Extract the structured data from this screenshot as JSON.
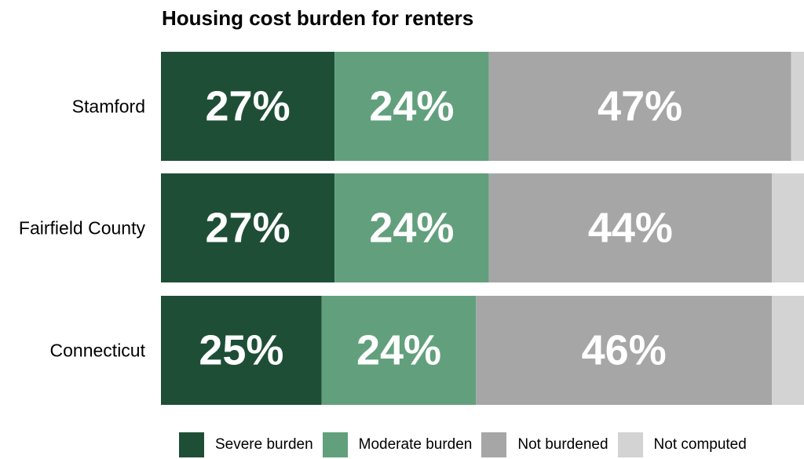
{
  "chart_data": {
    "type": "bar",
    "orientation": "horizontal",
    "stacked": true,
    "title": "Housing cost burden for renters",
    "categories": [
      "Stamford",
      "Fairfield County",
      "Connecticut"
    ],
    "series": [
      {
        "name": "Severe burden",
        "color": "#1f4e37",
        "values": [
          27,
          27,
          25
        ]
      },
      {
        "name": "Moderate burden",
        "color": "#62a07d",
        "values": [
          24,
          24,
          24
        ]
      },
      {
        "name": "Not burdened",
        "color": "#a6a6a6",
        "values": [
          47,
          44,
          46
        ]
      },
      {
        "name": "Not computed",
        "color": "#d3d3d3",
        "values": [
          2,
          5,
          6
        ]
      }
    ],
    "value_labels": [
      [
        "27%",
        "24%",
        "47%",
        ""
      ],
      [
        "27%",
        "24%",
        "44%",
        ""
      ],
      [
        "25%",
        "24%",
        "46%",
        ""
      ]
    ],
    "xlim": [
      0,
      100
    ],
    "grid": false,
    "legend_position": "bottom"
  }
}
